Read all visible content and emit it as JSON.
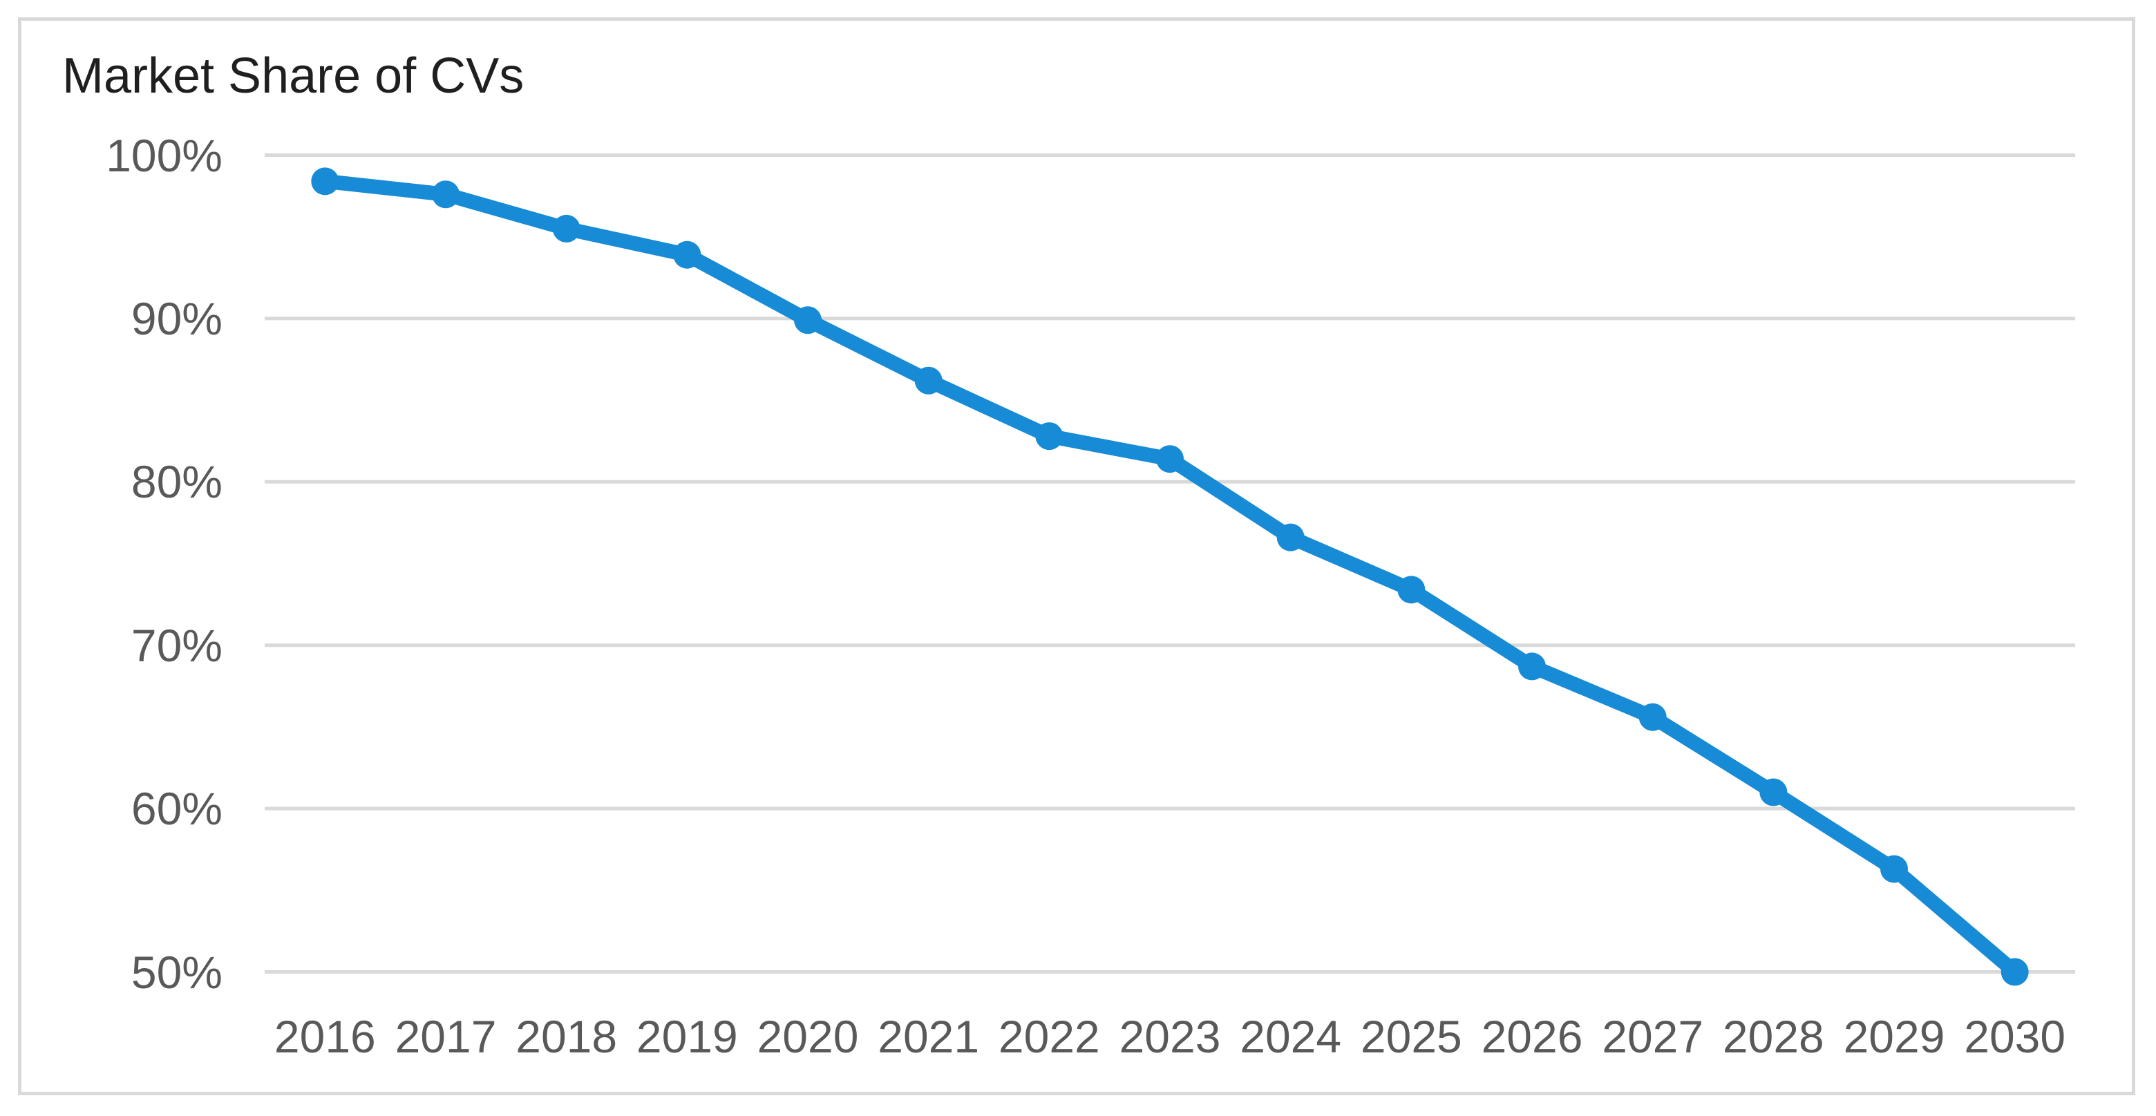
{
  "window": {
    "background_color": "#ffffff",
    "frame_border_color": "#d9d9d9"
  },
  "chart_data": {
    "type": "line",
    "title": "Market Share of CVs",
    "categories": [
      "2016",
      "2017",
      "2018",
      "2019",
      "2020",
      "2021",
      "2022",
      "2023",
      "2024",
      "2025",
      "2026",
      "2027",
      "2028",
      "2029",
      "2030"
    ],
    "series": [
      {
        "name": "Market Share of CVs",
        "values": [
          98.4,
          97.6,
          95.5,
          93.9,
          89.9,
          86.2,
          82.8,
          81.4,
          76.6,
          73.4,
          68.7,
          65.6,
          61.0,
          56.3,
          50.0
        ]
      }
    ],
    "unit": "%",
    "xlabel": "",
    "ylabel": "",
    "ylim": [
      50,
      100
    ],
    "y_tick_values": [
      100,
      90,
      80,
      70,
      60,
      50
    ],
    "y_tick_labels": [
      "100%",
      "90%",
      "80%",
      "70%",
      "60%",
      "50%"
    ],
    "grid": "horizontal",
    "legend_position": "none",
    "data_labels": "none",
    "line_color": "#178bd5",
    "marker_style": "filled-circle",
    "gridline_color": "#d9d9d9",
    "tick_label_color": "#595959",
    "title_color": "#1f1f1f"
  }
}
